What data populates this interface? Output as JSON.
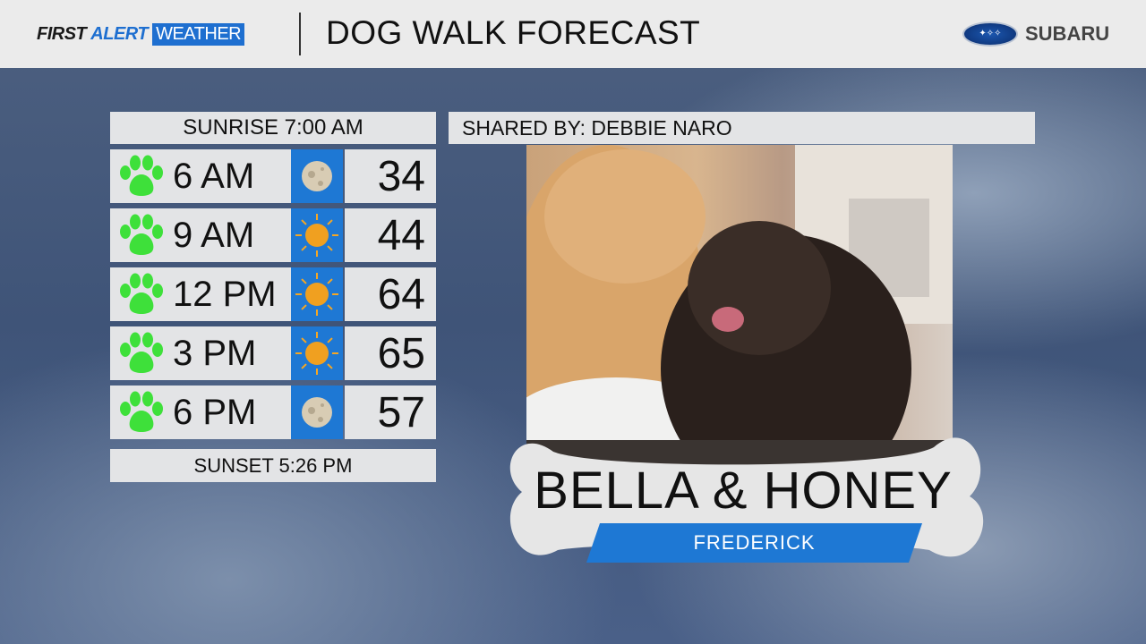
{
  "header": {
    "brand": {
      "first": "FIRST",
      "alert": "ALERT",
      "weather": "WEATHER"
    },
    "title": "DOG WALK FORECAST",
    "sponsor": "SUBARU"
  },
  "forecast": {
    "sunrise": "SUNRISE 7:00 AM",
    "sunset": "SUNSET 5:26 PM",
    "rows": [
      {
        "time": "6 AM",
        "icon": "moon-icon",
        "temp": "34",
        "walk_rating": "paw-green"
      },
      {
        "time": "9 AM",
        "icon": "sun-icon",
        "temp": "44",
        "walk_rating": "paw-green"
      },
      {
        "time": "12 PM",
        "icon": "sun-icon",
        "temp": "64",
        "walk_rating": "paw-green"
      },
      {
        "time": "3 PM",
        "icon": "sun-icon",
        "temp": "65",
        "walk_rating": "paw-green"
      },
      {
        "time": "6 PM",
        "icon": "moon-icon",
        "temp": "57",
        "walk_rating": "paw-green"
      }
    ]
  },
  "feature": {
    "shared_by": "SHARED BY: DEBBIE NARO",
    "pet_names": "BELLA & HONEY",
    "location": "FREDERICK"
  },
  "colors": {
    "accent": "#1e78d4",
    "paw": "#3ee03a",
    "panel": "#e3e4e6"
  }
}
